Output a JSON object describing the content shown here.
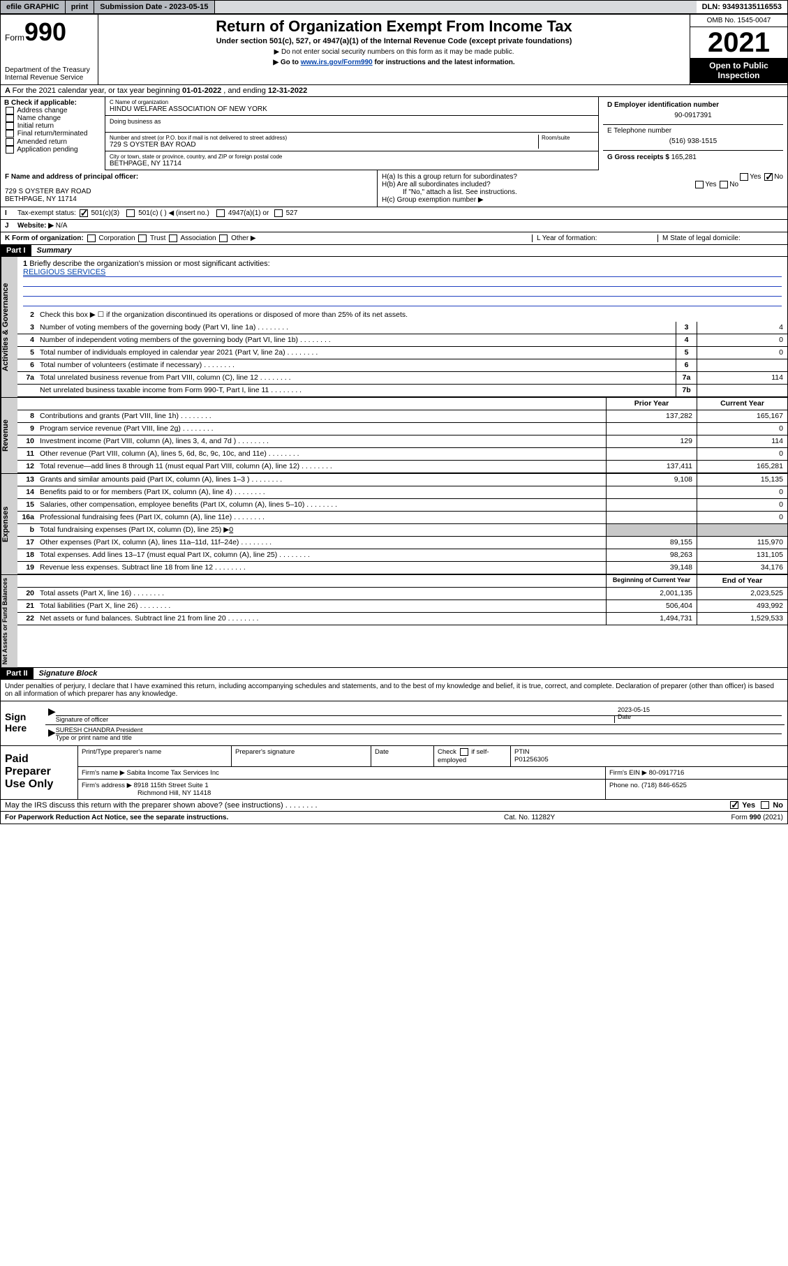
{
  "topbar": {
    "efile": "efile GRAPHIC",
    "print": "print",
    "submission": "Submission Date - 2023-05-15",
    "dln": "DLN: 93493135116553"
  },
  "header": {
    "form_word": "Form",
    "form_num": "990",
    "dept": "Department of the Treasury",
    "irs": "Internal Revenue Service",
    "title": "Return of Organization Exempt From Income Tax",
    "sub": "Under section 501(c), 527, or 4947(a)(1) of the Internal Revenue Code (except private foundations)",
    "note1": "▶ Do not enter social security numbers on this form as it may be made public.",
    "note2_pre": "▶ Go to ",
    "note2_link": "www.irs.gov/Form990",
    "note2_post": " for instructions and the latest information.",
    "omb": "OMB No. 1545-0047",
    "year": "2021",
    "openpub": "Open to Public Inspection"
  },
  "A": {
    "text": "For the 2021 calendar year, or tax year beginning ",
    "begin": "01-01-2022",
    "mid": "  , and ending ",
    "end": "12-31-2022"
  },
  "B": {
    "label": "B Check if applicable:",
    "opts": [
      "Address change",
      "Name change",
      "Initial return",
      "Final return/terminated",
      "Amended return",
      "Application pending"
    ]
  },
  "C": {
    "label": "C Name of organization",
    "name": "HINDU WELFARE ASSOCIATION OF NEW YORK",
    "dba": "Doing business as",
    "street_label": "Number and street (or P.O. box if mail is not delivered to street address)",
    "room": "Room/suite",
    "street": "729 S OYSTER BAY ROAD",
    "city_label": "City or town, state or province, country, and ZIP or foreign postal code",
    "city": "BETHPAGE, NY  11714"
  },
  "D": {
    "label": "D Employer identification number",
    "val": "90-0917391"
  },
  "E": {
    "label": "E Telephone number",
    "val": "(516) 938-1515"
  },
  "G": {
    "label": "G Gross receipts $",
    "val": "165,281"
  },
  "F": {
    "label": "F  Name and address of principal officer:",
    "addr1": "729 S OYSTER BAY ROAD",
    "addr2": "BETHPAGE, NY  11714"
  },
  "H": {
    "a": "H(a)  Is this a group return for subordinates?",
    "b": "H(b)  Are all subordinates included?",
    "bnote": "If \"No,\" attach a list. See instructions.",
    "c": "H(c)  Group exemption number ▶",
    "yes": "Yes",
    "no": "No"
  },
  "I": {
    "label": "Tax-exempt status:",
    "c3": "501(c)(3)",
    "c": "501(c) (  ) ◀ (insert no.)",
    "a1": "4947(a)(1) or",
    "s527": "527"
  },
  "J": {
    "label": "Website: ▶",
    "val": "N/A"
  },
  "K": {
    "label": "K Form of organization:",
    "opts": [
      "Corporation",
      "Trust",
      "Association",
      "Other ▶"
    ],
    "L": "L Year of formation:",
    "M": "M State of legal domicile:"
  },
  "part1": {
    "hdr": "Part I",
    "label": "Summary"
  },
  "gov": {
    "tab": "Activities & Governance",
    "l1": "Briefly describe the organization's mission or most significant activities:",
    "mission": "RELIGIOUS SERVICES",
    "l2": "Check this box ▶ ☐  if the organization discontinued its operations or disposed of more than 25% of its net assets.",
    "rows": [
      {
        "n": "3",
        "d": "Number of voting members of the governing body (Part VI, line 1a)",
        "box": "3",
        "v": "4"
      },
      {
        "n": "4",
        "d": "Number of independent voting members of the governing body (Part VI, line 1b)",
        "box": "4",
        "v": "0"
      },
      {
        "n": "5",
        "d": "Total number of individuals employed in calendar year 2021 (Part V, line 2a)",
        "box": "5",
        "v": "0"
      },
      {
        "n": "6",
        "d": "Total number of volunteers (estimate if necessary)",
        "box": "6",
        "v": ""
      },
      {
        "n": "7a",
        "d": "Total unrelated business revenue from Part VIII, column (C), line 12",
        "box": "7a",
        "v": "114"
      },
      {
        "n": "",
        "d": "Net unrelated business taxable income from Form 990-T, Part I, line 11",
        "box": "7b",
        "v": ""
      }
    ]
  },
  "rev": {
    "tab": "Revenue",
    "hprior": "Prior Year",
    "hcurr": "Current Year",
    "rows": [
      {
        "n": "8",
        "d": "Contributions and grants (Part VIII, line 1h)",
        "p": "137,282",
        "c": "165,167"
      },
      {
        "n": "9",
        "d": "Program service revenue (Part VIII, line 2g)",
        "p": "",
        "c": "0"
      },
      {
        "n": "10",
        "d": "Investment income (Part VIII, column (A), lines 3, 4, and 7d )",
        "p": "129",
        "c": "114"
      },
      {
        "n": "11",
        "d": "Other revenue (Part VIII, column (A), lines 5, 6d, 8c, 9c, 10c, and 11e)",
        "p": "",
        "c": "0"
      },
      {
        "n": "12",
        "d": "Total revenue—add lines 8 through 11 (must equal Part VIII, column (A), line 12)",
        "p": "137,411",
        "c": "165,281"
      }
    ]
  },
  "exp": {
    "tab": "Expenses",
    "rows": [
      {
        "n": "13",
        "d": "Grants and similar amounts paid (Part IX, column (A), lines 1–3 )",
        "p": "9,108",
        "c": "15,135"
      },
      {
        "n": "14",
        "d": "Benefits paid to or for members (Part IX, column (A), line 4)",
        "p": "",
        "c": "0"
      },
      {
        "n": "15",
        "d": "Salaries, other compensation, employee benefits (Part IX, column (A), lines 5–10)",
        "p": "",
        "c": "0"
      },
      {
        "n": "16a",
        "d": "Professional fundraising fees (Part IX, column (A), line 11e)",
        "p": "",
        "c": "0"
      }
    ],
    "l16b": "Total fundraising expenses (Part IX, column (D), line 25) ▶",
    "l16bval": "0",
    "rows2": [
      {
        "n": "17",
        "d": "Other expenses (Part IX, column (A), lines 11a–11d, 11f–24e)",
        "p": "89,155",
        "c": "115,970"
      },
      {
        "n": "18",
        "d": "Total expenses. Add lines 13–17 (must equal Part IX, column (A), line 25)",
        "p": "98,263",
        "c": "131,105"
      },
      {
        "n": "19",
        "d": "Revenue less expenses. Subtract line 18 from line 12",
        "p": "39,148",
        "c": "34,176"
      }
    ]
  },
  "net": {
    "tab": "Net Assets or Fund Balances",
    "hbeg": "Beginning of Current Year",
    "hend": "End of Year",
    "rows": [
      {
        "n": "20",
        "d": "Total assets (Part X, line 16)",
        "p": "2,001,135",
        "c": "2,023,525"
      },
      {
        "n": "21",
        "d": "Total liabilities (Part X, line 26)",
        "p": "506,404",
        "c": "493,992"
      },
      {
        "n": "22",
        "d": "Net assets or fund balances. Subtract line 21 from line 20",
        "p": "1,494,731",
        "c": "1,529,533"
      }
    ]
  },
  "part2": {
    "hdr": "Part II",
    "label": "Signature Block"
  },
  "sig": {
    "decl": "Under penalties of perjury, I declare that I have examined this return, including accompanying schedules and statements, and to the best of my knowledge and belief, it is true, correct, and complete. Declaration of preparer (other than officer) is based on all information of which preparer has any knowledge.",
    "signhere": "Sign Here",
    "sigoff": "Signature of officer",
    "date": "Date",
    "dateval": "2023-05-15",
    "name": "SURESH CHANDRA President",
    "nametype": "Type or print name and title"
  },
  "prep": {
    "label": "Paid Preparer Use Only",
    "h1": "Print/Type preparer's name",
    "h2": "Preparer's signature",
    "h3": "Date",
    "h4pre": "Check",
    "h4post": "if self-employed",
    "ptin_l": "PTIN",
    "ptin": "P01256305",
    "firm_l": "Firm's name    ▶",
    "firm": "Sabita Income Tax Services Inc",
    "ein_l": "Firm's EIN ▶",
    "ein": "80-0917716",
    "addr_l": "Firm's address ▶",
    "addr1": "8918 115th Street Suite 1",
    "addr2": "Richmond Hill, NY  11418",
    "phone_l": "Phone no.",
    "phone": "(718) 846-6525"
  },
  "discuss": {
    "q": "May the IRS discuss this return with the preparer shown above? (see instructions)",
    "yes": "Yes",
    "no": "No"
  },
  "footer": {
    "pra": "For Paperwork Reduction Act Notice, see the separate instructions.",
    "cat": "Cat. No. 11282Y",
    "form": "Form 990 (2021)"
  }
}
